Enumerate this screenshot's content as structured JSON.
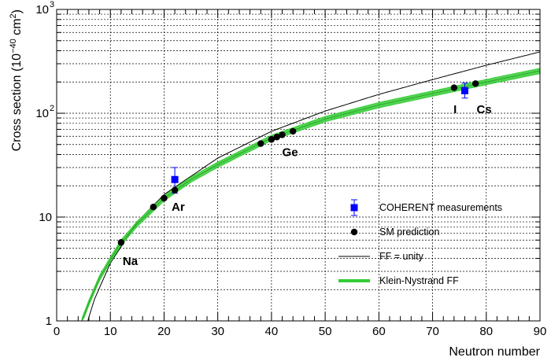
{
  "chart_data": {
    "type": "scatter",
    "title": "",
    "xlabel": "Neutron number",
    "ylabel_prefix": "Cross section (10",
    "ylabel_exp": "−40",
    "ylabel_unit": " cm",
    "ylabel_unit_exp": "2",
    "ylabel_suffix": ")",
    "xlim": [
      0,
      90
    ],
    "ylim": [
      1,
      1000
    ],
    "yscale": "log",
    "grid": true,
    "x_ticks": [
      {
        "value": 0,
        "label": "0"
      },
      {
        "value": 10,
        "label": "10"
      },
      {
        "value": 20,
        "label": "20"
      },
      {
        "value": 30,
        "label": "30"
      },
      {
        "value": 40,
        "label": "40"
      },
      {
        "value": 50,
        "label": "50"
      },
      {
        "value": 60,
        "label": "60"
      },
      {
        "value": 70,
        "label": "70"
      },
      {
        "value": 80,
        "label": "80"
      },
      {
        "value": 90,
        "label": "90"
      }
    ],
    "y_ticks": [
      {
        "value": 1,
        "label": "1",
        "exp": ""
      },
      {
        "value": 10,
        "label": "10",
        "exp": ""
      },
      {
        "value": 100,
        "label": "10",
        "exp": "2"
      },
      {
        "value": 1000,
        "label": "10",
        "exp": "3"
      }
    ],
    "legend": {
      "placement": "bottom-right",
      "entries": [
        {
          "name": "COHERENT measurements",
          "marker": "square-errorbar",
          "color": "#0000ff"
        },
        {
          "name": "SM prediction",
          "marker": "circle",
          "color": "#000000"
        },
        {
          "name": "FF = unity",
          "marker": "line",
          "color": "#000000"
        },
        {
          "name": "Klein-Nystrand FF",
          "marker": "band",
          "color": "#33cc33"
        }
      ]
    },
    "series": [
      {
        "name": "COHERENT measurements",
        "color": "#0000ff",
        "points": [
          {
            "x": 22,
            "y": 23,
            "yerr_low": 17,
            "yerr_high": 30
          },
          {
            "x": 76,
            "y": 165,
            "yerr_low": 140,
            "yerr_high": 195
          }
        ]
      },
      {
        "name": "SM prediction",
        "color": "#000000",
        "points": [
          {
            "x": 12,
            "y": 5.7
          },
          {
            "x": 18,
            "y": 12.5
          },
          {
            "x": 20,
            "y": 15.2
          },
          {
            "x": 22,
            "y": 18.2
          },
          {
            "x": 38,
            "y": 51
          },
          {
            "x": 40,
            "y": 56
          },
          {
            "x": 41,
            "y": 59
          },
          {
            "x": 42,
            "y": 62
          },
          {
            "x": 44,
            "y": 67
          },
          {
            "x": 74,
            "y": 176
          },
          {
            "x": 78,
            "y": 193
          }
        ]
      },
      {
        "name": "FF = unity",
        "color": "#000000",
        "style": "line",
        "x": [
          5.8,
          7,
          10,
          15,
          20,
          30,
          40,
          50,
          60,
          70,
          80,
          90
        ],
        "y": [
          1.0,
          1.6,
          3.6,
          9.0,
          16.5,
          37,
          67,
          105,
          152,
          211,
          290,
          390
        ]
      },
      {
        "name": "Klein-Nystrand FF",
        "color": "#33cc33",
        "style": "band",
        "x": [
          4.7,
          6,
          8,
          10,
          12,
          15,
          20,
          25,
          30,
          40,
          50,
          60,
          70,
          80,
          90
        ],
        "y": [
          1.0,
          1.5,
          2.6,
          3.9,
          5.7,
          8.6,
          15.2,
          23,
          32,
          58,
          88,
          120,
          155,
          200,
          256
        ],
        "band_rel_half_width": 0.06
      }
    ],
    "annotations": [
      {
        "text": "Na",
        "x": 12.3,
        "y": 3.45
      },
      {
        "text": "Ar",
        "x": 21.4,
        "y": 11.5
      },
      {
        "text": "Ge",
        "x": 42.0,
        "y": 38.5
      },
      {
        "text": "I",
        "x": 73.9,
        "y": 100
      },
      {
        "text": "Cs",
        "x": 78.2,
        "y": 100
      }
    ]
  }
}
